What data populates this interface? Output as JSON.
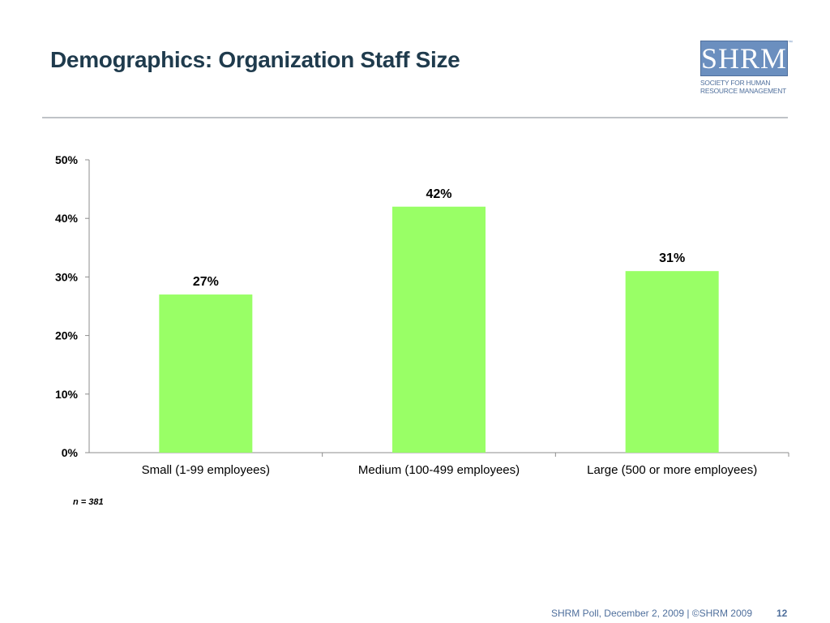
{
  "slide": {
    "title": "Demographics: Organization Staff Size",
    "note": "n = 381",
    "footer": "SHRM Poll, December 2, 2009 | ©SHRM 2009",
    "page_number": "12"
  },
  "logo": {
    "letters": "SHRM",
    "tm": "™",
    "tagline": "Society for Human\nResource Management",
    "color": "#6b8fbf"
  },
  "colors": {
    "bar": "#99ff66",
    "axis": "#8c8c8c",
    "title": "#1f3b4d",
    "footer": "#4f6f9c"
  },
  "chart_data": {
    "type": "bar",
    "categories": [
      "Small (1-99 employees)",
      "Medium (100-499 employees)",
      "Large (500 or more employees)"
    ],
    "values": [
      27,
      42,
      31
    ],
    "data_labels": [
      "27%",
      "42%",
      "31%"
    ],
    "title": "",
    "xlabel": "",
    "ylabel": "",
    "ylim": [
      0,
      50
    ],
    "yticks": [
      0,
      10,
      20,
      30,
      40,
      50
    ],
    "ytick_labels": [
      "0%",
      "10%",
      "20%",
      "30%",
      "40%",
      "50%"
    ],
    "grid": false,
    "legend": "none"
  }
}
